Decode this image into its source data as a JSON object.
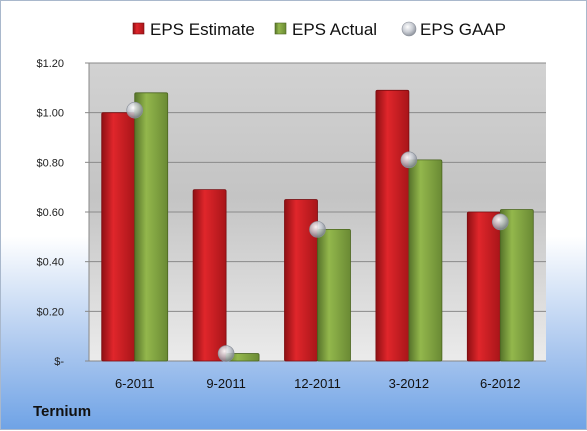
{
  "company": "Ternium",
  "legend": [
    {
      "name": "EPS Estimate",
      "color": "#c0191e",
      "kind": "square"
    },
    {
      "name": "EPS Actual",
      "color": "#7c9e3c",
      "kind": "square"
    },
    {
      "name": "EPS GAAP",
      "color": "#b8bcc4",
      "kind": "circle"
    }
  ],
  "chart_data": {
    "type": "bar",
    "categories": [
      "6-2011",
      "9-2011",
      "12-2011",
      "3-2012",
      "6-2012"
    ],
    "series": [
      {
        "name": "EPS Estimate",
        "type": "bar",
        "color": "#c0191e",
        "values": [
          1.0,
          0.69,
          0.65,
          1.09,
          0.6
        ]
      },
      {
        "name": "EPS Actual",
        "type": "bar",
        "color": "#7c9e3c",
        "values": [
          1.08,
          0.03,
          0.53,
          0.81,
          0.61
        ]
      },
      {
        "name": "EPS GAAP",
        "type": "scatter",
        "color": "#b8bcc4",
        "values": [
          1.01,
          0.03,
          0.53,
          0.81,
          0.56
        ]
      }
    ],
    "ylim": [
      0,
      1.2
    ],
    "yticks": [
      0,
      0.2,
      0.4,
      0.6,
      0.8,
      1.0,
      1.2
    ],
    "ytick_labels": [
      "$-",
      "$0.20",
      "$0.40",
      "$0.60",
      "$0.80",
      "$1.00",
      "$1.20"
    ],
    "grid": true,
    "legend_position": "top"
  }
}
